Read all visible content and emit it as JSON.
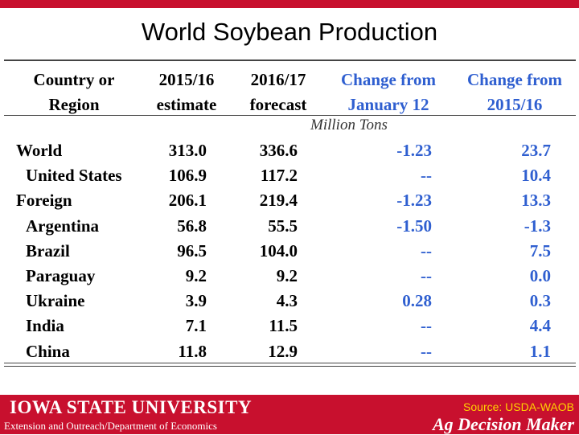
{
  "slide": {
    "title": "World Soybean Production"
  },
  "table": {
    "headers": [
      {
        "line1": "Country or",
        "line2": "Region"
      },
      {
        "line1": "2015/16",
        "line2": "estimate"
      },
      {
        "line1": "2016/17",
        "line2": "forecast"
      },
      {
        "line1": "Change from",
        "line2": "January 12"
      },
      {
        "line1": "Change from",
        "line2": "2015/16"
      }
    ],
    "units": "Million Tons",
    "rows": [
      {
        "name": "World",
        "estimate": "313.0",
        "forecast": "336.6",
        "change_jan": "-1.23",
        "change_prev": "23.7"
      },
      {
        "name": "United States",
        "estimate": "106.9",
        "forecast": "117.2",
        "change_jan": "--",
        "change_prev": "10.4"
      },
      {
        "name": "Foreign",
        "estimate": "206.1",
        "forecast": "219.4",
        "change_jan": "-1.23",
        "change_prev": "13.3"
      },
      {
        "name": "Argentina",
        "estimate": "56.8",
        "forecast": "55.5",
        "change_jan": "-1.50",
        "change_prev": "-1.3"
      },
      {
        "name": "Brazil",
        "estimate": "96.5",
        "forecast": "104.0",
        "change_jan": "--",
        "change_prev": "7.5"
      },
      {
        "name": "Paraguay",
        "estimate": "9.2",
        "forecast": "9.2",
        "change_jan": "--",
        "change_prev": "0.0"
      },
      {
        "name": "Ukraine",
        "estimate": "3.9",
        "forecast": "4.3",
        "change_jan": "0.28",
        "change_prev": "0.3"
      },
      {
        "name": "India",
        "estimate": "7.1",
        "forecast": "11.5",
        "change_jan": "--",
        "change_prev": "4.4"
      },
      {
        "name": "China",
        "estimate": "11.8",
        "forecast": "12.9",
        "change_jan": "--",
        "change_prev": "1.1"
      }
    ]
  },
  "footer": {
    "university": "IOWA STATE UNIVERSITY",
    "department": "Extension and Outreach/Department of Economics",
    "source": "Source: USDA-WAOB",
    "brand": "Ag Decision Maker"
  },
  "colors": {
    "accent_red": "#c8102e",
    "change_blue": "#2f5fd0",
    "source_yellow": "#ffd200"
  }
}
